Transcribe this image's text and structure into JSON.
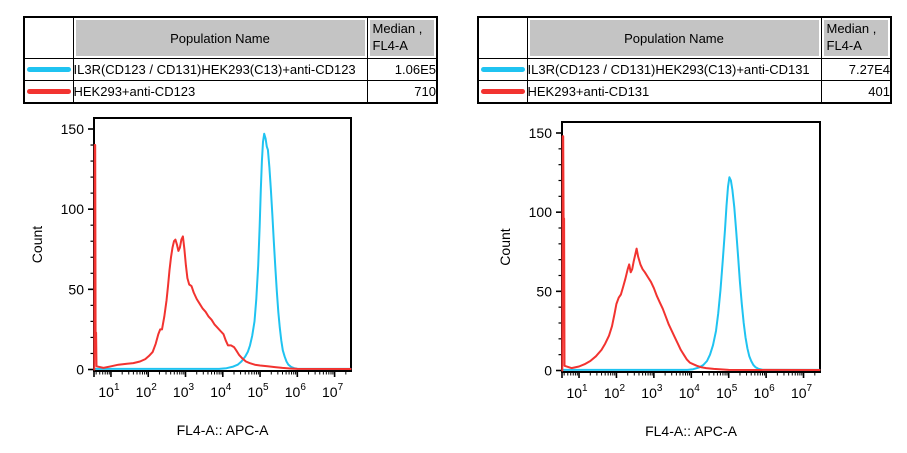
{
  "colors": {
    "cyan": "#1fc3f1",
    "red": "#f23330",
    "header_bg": "#c4c4c4",
    "axis": "#000000"
  },
  "panels": [
    {
      "table": {
        "col_population": "Population Name",
        "col_median_line1": "Median ,",
        "col_median_line2": "FL4-A",
        "rows": [
          {
            "name": "IL3R(CD123 / CD131)HEK293(C13)+anti-CD123",
            "median": "1.06E5",
            "swatch": "#1fc3f1"
          },
          {
            "name": "HEK293+anti-CD123",
            "median": "710",
            "swatch": "#f23330"
          }
        ]
      }
    },
    {
      "table": {
        "col_population": "Population Name",
        "col_median_line1": "Median ,",
        "col_median_line2": "FL4-A",
        "rows": [
          {
            "name": "IL3R(CD123 / CD131)HEK293(C13)+anti-CD131",
            "median": "7.27E4",
            "swatch": "#1fc3f1"
          },
          {
            "name": "HEK293+anti-CD131",
            "median": "401",
            "swatch": "#f23330"
          }
        ]
      }
    }
  ],
  "chart_data": [
    {
      "type": "line",
      "title": "",
      "xlabel": "FL4-A:: APC-A",
      "ylabel": "Count",
      "x_scale": "log10",
      "xlim_log10": [
        0.545,
        7.44
      ],
      "ylim": [
        0,
        155
      ],
      "yticks": [
        0,
        50,
        100,
        150
      ],
      "y_minor_step": 10,
      "xticks_exponents": [
        1,
        2,
        3,
        4,
        5,
        6,
        7
      ],
      "grid": false,
      "legend": "table above chart",
      "series": [
        {
          "name": "IL3R(CD123 / CD131)HEK293(C13)+anti-CD123",
          "color": "#1fc3f1",
          "median": "1.06E5",
          "points_log10x_count": [
            [
              0.553,
              0.4
            ],
            [
              3.9,
              0.4
            ],
            [
              4.1,
              0.8
            ],
            [
              4.28,
              1.8
            ],
            [
              4.4,
              3
            ],
            [
              4.5,
              5
            ],
            [
              4.6,
              8
            ],
            [
              4.67,
              11
            ],
            [
              4.73,
              15
            ],
            [
              4.79,
              21
            ],
            [
              4.85,
              30
            ],
            [
              4.9,
              44
            ],
            [
              4.95,
              65
            ],
            [
              4.99,
              90
            ],
            [
              5.02,
              112
            ],
            [
              5.05,
              130
            ],
            [
              5.08,
              142
            ],
            [
              5.11,
              147
            ],
            [
              5.15,
              144
            ],
            [
              5.18,
              139
            ],
            [
              5.21,
              137
            ],
            [
              5.25,
              126
            ],
            [
              5.29,
              112
            ],
            [
              5.33,
              96
            ],
            [
              5.37,
              80
            ],
            [
              5.41,
              64
            ],
            [
              5.45,
              49
            ],
            [
              5.49,
              36
            ],
            [
              5.53,
              26
            ],
            [
              5.57,
              18
            ],
            [
              5.61,
              12
            ],
            [
              5.66,
              8
            ],
            [
              5.71,
              5
            ],
            [
              5.76,
              3
            ],
            [
              5.84,
              1.5
            ],
            [
              5.92,
              0.8
            ],
            [
              6.0,
              0.5
            ],
            [
              7.43,
              0.4
            ]
          ]
        },
        {
          "name": "HEK293+anti-CD123",
          "color": "#f23330",
          "median": "710",
          "points_log10x_count": [
            [
              0.553,
              0
            ],
            [
              0.565,
              140
            ],
            [
              0.578,
              140
            ],
            [
              0.588,
              23
            ],
            [
              0.6,
              23
            ],
            [
              0.612,
              2
            ],
            [
              0.8,
              1
            ],
            [
              1.0,
              2
            ],
            [
              1.2,
              3
            ],
            [
              1.4,
              3.5
            ],
            [
              1.6,
              4
            ],
            [
              1.78,
              5
            ],
            [
              1.92,
              6.5
            ],
            [
              2.02,
              8.5
            ],
            [
              2.12,
              11
            ],
            [
              2.2,
              16
            ],
            [
              2.27,
              22
            ],
            [
              2.32,
              25
            ],
            [
              2.37,
              25
            ],
            [
              2.43,
              33
            ],
            [
              2.49,
              43
            ],
            [
              2.53,
              52
            ],
            [
              2.57,
              62
            ],
            [
              2.61,
              70
            ],
            [
              2.65,
              76
            ],
            [
              2.69,
              80
            ],
            [
              2.73,
              81
            ],
            [
              2.77,
              78
            ],
            [
              2.81,
              74
            ],
            [
              2.85,
              76
            ],
            [
              2.89,
              81
            ],
            [
              2.93,
              83
            ],
            [
              2.97,
              75
            ],
            [
              3.01,
              65
            ],
            [
              3.05,
              57
            ],
            [
              3.1,
              53
            ],
            [
              3.16,
              52
            ],
            [
              3.22,
              48
            ],
            [
              3.3,
              44
            ],
            [
              3.38,
              41
            ],
            [
              3.46,
              38
            ],
            [
              3.54,
              36
            ],
            [
              3.62,
              33
            ],
            [
              3.7,
              31
            ],
            [
              3.78,
              28
            ],
            [
              3.86,
              26
            ],
            [
              3.94,
              24
            ],
            [
              4.02,
              22
            ],
            [
              4.08,
              18
            ],
            [
              4.14,
              15
            ],
            [
              4.22,
              15
            ],
            [
              4.3,
              14
            ],
            [
              4.36,
              12
            ],
            [
              4.44,
              9
            ],
            [
              4.52,
              7
            ],
            [
              4.62,
              5
            ],
            [
              4.72,
              4
            ],
            [
              4.86,
              3
            ],
            [
              5.0,
              2.5
            ],
            [
              5.2,
              2
            ],
            [
              5.4,
              1.5
            ],
            [
              5.6,
              1
            ],
            [
              5.8,
              0.6
            ],
            [
              6.0,
              0.4
            ],
            [
              7.43,
              0.3
            ]
          ]
        }
      ]
    },
    {
      "type": "line",
      "title": "",
      "xlabel": "FL4-A:: APC-A",
      "ylabel": "Count",
      "x_scale": "log10",
      "xlim_log10": [
        0.545,
        7.44
      ],
      "ylim": [
        0,
        155
      ],
      "yticks": [
        0,
        50,
        100,
        150
      ],
      "y_minor_step": 10,
      "xticks_exponents": [
        1,
        2,
        3,
        4,
        5,
        6,
        7
      ],
      "grid": false,
      "legend": "table above chart",
      "series": [
        {
          "name": "IL3R(CD123 / CD131)HEK293(C13)+anti-CD131",
          "color": "#1fc3f1",
          "median": "7.27E4",
          "points_log10x_count": [
            [
              0.553,
              0.4
            ],
            [
              3.9,
              0.4
            ],
            [
              4.05,
              0.8
            ],
            [
              4.2,
              1.8
            ],
            [
              4.32,
              3.5
            ],
            [
              4.42,
              6
            ],
            [
              4.5,
              10
            ],
            [
              4.58,
              16
            ],
            [
              4.66,
              25
            ],
            [
              4.72,
              36
            ],
            [
              4.78,
              51
            ],
            [
              4.84,
              69
            ],
            [
              4.9,
              89
            ],
            [
              4.94,
              104
            ],
            [
              4.98,
              116
            ],
            [
              5.02,
              122
            ],
            [
              5.06,
              120
            ],
            [
              5.1,
              114
            ],
            [
              5.15,
              103
            ],
            [
              5.2,
              88
            ],
            [
              5.25,
              72
            ],
            [
              5.3,
              56
            ],
            [
              5.35,
              42
            ],
            [
              5.4,
              30
            ],
            [
              5.45,
              21
            ],
            [
              5.5,
              14
            ],
            [
              5.55,
              9
            ],
            [
              5.6,
              6
            ],
            [
              5.66,
              3.5
            ],
            [
              5.72,
              2
            ],
            [
              5.8,
              1
            ],
            [
              5.9,
              0.5
            ],
            [
              7.43,
              0.4
            ]
          ]
        },
        {
          "name": "HEK293+anti-CD131",
          "color": "#f23330",
          "median": "401",
          "points_log10x_count": [
            [
              0.553,
              0
            ],
            [
              0.565,
              148
            ],
            [
              0.578,
              148
            ],
            [
              0.588,
              96
            ],
            [
              0.6,
              96
            ],
            [
              0.612,
              3
            ],
            [
              0.8,
              1.5
            ],
            [
              1.0,
              2.5
            ],
            [
              1.15,
              4
            ],
            [
              1.3,
              6
            ],
            [
              1.45,
              9
            ],
            [
              1.6,
              13
            ],
            [
              1.7,
              17
            ],
            [
              1.8,
              22
            ],
            [
              1.88,
              28
            ],
            [
              1.95,
              36
            ],
            [
              2.0,
              42
            ],
            [
              2.06,
              46
            ],
            [
              2.12,
              48
            ],
            [
              2.18,
              53
            ],
            [
              2.24,
              58
            ],
            [
              2.3,
              64
            ],
            [
              2.34,
              67
            ],
            [
              2.38,
              62
            ],
            [
              2.42,
              64
            ],
            [
              2.46,
              69
            ],
            [
              2.5,
              73
            ],
            [
              2.54,
              77
            ],
            [
              2.58,
              72
            ],
            [
              2.64,
              67
            ],
            [
              2.7,
              64
            ],
            [
              2.76,
              62
            ],
            [
              2.84,
              59
            ],
            [
              2.92,
              56
            ],
            [
              3.0,
              52
            ],
            [
              3.08,
              47
            ],
            [
              3.16,
              43
            ],
            [
              3.24,
              39
            ],
            [
              3.32,
              34
            ],
            [
              3.4,
              29
            ],
            [
              3.48,
              25
            ],
            [
              3.56,
              21
            ],
            [
              3.64,
              17
            ],
            [
              3.72,
              13
            ],
            [
              3.8,
              10
            ],
            [
              3.88,
              7
            ],
            [
              3.96,
              5
            ],
            [
              4.05,
              4
            ],
            [
              4.15,
              3
            ],
            [
              4.27,
              2
            ],
            [
              4.4,
              1.5
            ],
            [
              4.6,
              1
            ],
            [
              4.8,
              0.7
            ],
            [
              5.0,
              0.4
            ],
            [
              7.43,
              0.3
            ]
          ]
        }
      ]
    }
  ]
}
